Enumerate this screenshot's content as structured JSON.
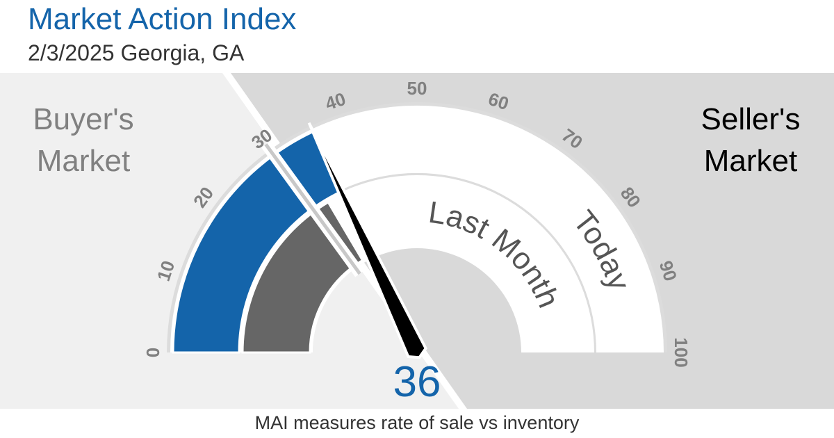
{
  "header": {
    "title": "Market Action Index",
    "subtitle": "2/3/2025 Georgia, GA"
  },
  "labels": {
    "buyer_line1": "Buyer's",
    "buyer_line2": "Market",
    "seller_line1": "Seller's",
    "seller_line2": "Market",
    "today": "Today",
    "last_month": "Last Month",
    "footer": "MAI measures rate of sale vs inventory"
  },
  "colors": {
    "today_fill": "#1464aa",
    "last_month_fill": "#666666",
    "buyer_zone": "#f0f0f0",
    "seller_zone": "#d9d9d9",
    "track": "#ffffff",
    "needle": "#000000",
    "value_text": "#1464aa"
  },
  "chart_data": {
    "type": "gauge",
    "title": "Market Action Index",
    "min": 0,
    "max": 100,
    "ticks": [
      "0",
      "10",
      "20",
      "30",
      "40",
      "50",
      "60",
      "70",
      "80",
      "90",
      "100"
    ],
    "threshold": 30,
    "series": [
      {
        "name": "Today",
        "value": 36
      },
      {
        "name": "Last Month",
        "value": 33
      }
    ],
    "needle_value": 36,
    "value_label": "36"
  }
}
